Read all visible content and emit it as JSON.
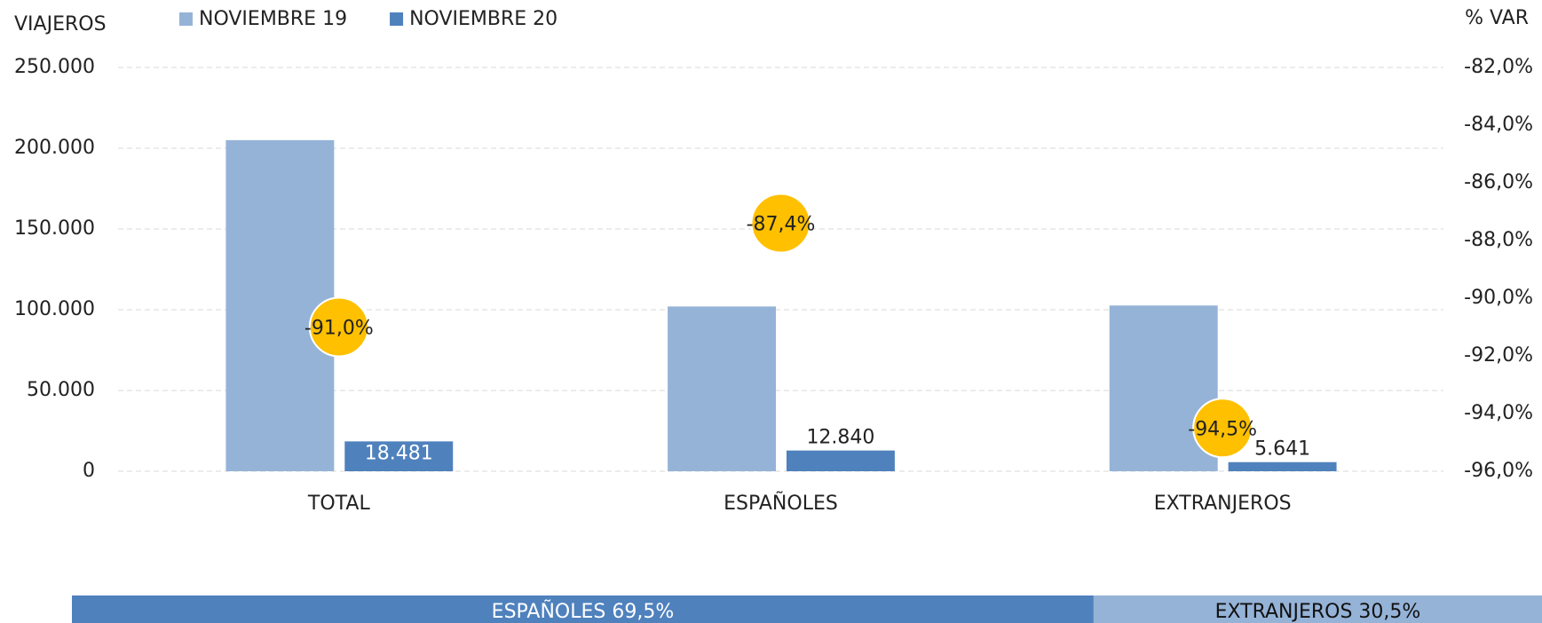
{
  "chart_data": {
    "type": "bar",
    "y_label": "VIAJEROS",
    "y2_label": "% VAR",
    "categories": [
      "TOTAL",
      "ESPAÑOLES",
      "EXTRANJEROS"
    ],
    "series": [
      {
        "name": "NOVIEMBRE 19",
        "color": "#95b3d7",
        "values": [
          205000,
          102000,
          102600
        ]
      },
      {
        "name": "NOVIEMBRE 20",
        "color": "#4f81bd",
        "values": [
          18481,
          12840,
          5641
        ],
        "value_labels": [
          "18.481",
          "12.840",
          "5.641"
        ]
      },
      {
        "name": "% VAR",
        "type": "scatter",
        "axis": "y2",
        "color": "#ffc000",
        "values": [
          -91.0,
          -87.4,
          -94.5
        ],
        "value_labels": [
          "-91,0%",
          "-87,4%",
          "-94,5%"
        ]
      }
    ],
    "ylim": [
      0,
      250000
    ],
    "yticks": [
      0,
      {
        "value": 50000,
        "label": "50.000"
      },
      {
        "value": 100000,
        "label": "100.000"
      },
      {
        "value": 150000,
        "label": "150.000"
      },
      {
        "value": 200000,
        "label": "200.000"
      },
      {
        "value": 250000,
        "label": "250.000"
      }
    ],
    "y2lim": [
      -96,
      -82
    ],
    "y2ticks": [
      {
        "value": -96,
        "label": "-96,0%"
      },
      {
        "value": -94,
        "label": "-94,0%"
      },
      {
        "value": -92,
        "label": "-92,0%"
      },
      {
        "value": -90,
        "label": "-90,0%"
      },
      {
        "value": -88,
        "label": "-88,0%"
      },
      {
        "value": -86,
        "label": "-86,0%"
      },
      {
        "value": -84,
        "label": "-84,0%"
      },
      {
        "value": -82,
        "label": "-82,0%"
      }
    ],
    "grid": true,
    "share_bar": [
      {
        "label": "ESPAÑOLES 69,5%",
        "value": 69.5,
        "color": "#4f81bd"
      },
      {
        "label": "EXTRANJEROS 30,5%",
        "value": 30.5,
        "color": "#95b3d7"
      }
    ]
  }
}
